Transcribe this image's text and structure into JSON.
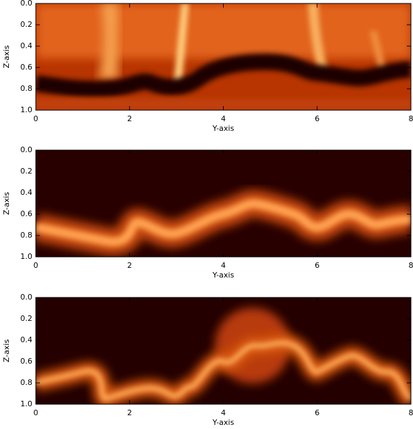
{
  "chart_data": [
    {
      "type": "heatmap",
      "xlabel": "Y-axis",
      "ylabel": "Z-axis",
      "xlim": [
        0,
        8
      ],
      "xticks": [
        0,
        2,
        4,
        6,
        8
      ],
      "ylim": [
        1,
        0
      ],
      "yticks": [
        {
          "value": 0,
          "label": "0.0"
        },
        0.2,
        0.4,
        0.6,
        0.8,
        {
          "value": 1,
          "label": "1.0"
        }
      ]
    },
    {
      "type": "heatmap",
      "xlabel": "Y-axis",
      "ylabel": "Z-axis",
      "xlim": [
        0,
        8
      ],
      "xticks": [
        0,
        2,
        4,
        6,
        8
      ],
      "ylim": [
        1,
        0
      ],
      "yticks": [
        {
          "value": 0,
          "label": "0.0"
        },
        0.2,
        0.4,
        0.6,
        0.8,
        {
          "value": 1,
          "label": "1.0"
        }
      ]
    },
    {
      "type": "heatmap",
      "xlabel": "Y-axis",
      "ylabel": "Z-axis",
      "xlim": [
        0,
        8
      ],
      "xticks": [
        0,
        2,
        4,
        6,
        8
      ],
      "ylim": [
        1,
        0
      ],
      "yticks": [
        {
          "value": 0,
          "label": "0.0"
        },
        0.2,
        0.4,
        0.6,
        0.8,
        {
          "value": 1,
          "label": "1.0"
        }
      ]
    }
  ]
}
